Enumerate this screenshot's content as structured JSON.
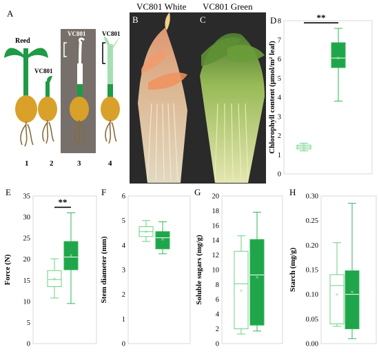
{
  "colors": {
    "green_fill": "#1fa64a",
    "green_line": "#2fb457",
    "light_line": "#6ccf82",
    "seed": "#d9a12a",
    "root": "#8a6a3a",
    "panel3_bg": "#77706a"
  },
  "panel_letters": [
    "A",
    "B",
    "C",
    "D",
    "E",
    "F",
    "G",
    "H"
  ],
  "panel_a": {
    "reed_label": "Reed",
    "vc801_label": "VC801",
    "numbers": [
      "1",
      "2",
      "3",
      "4"
    ]
  },
  "photos": {
    "b_title": "VC801 White",
    "c_title": "VC801 Green"
  },
  "chart_data": [
    {
      "id": "D",
      "type": "box",
      "ylabel": "Chlorophyll content (μmol/m² leaf)",
      "ylim": [
        0,
        8
      ],
      "yticks": [
        "0",
        "1",
        "2",
        "3",
        "4",
        "5",
        "6",
        "7",
        "8"
      ],
      "significance": "**",
      "series": [
        {
          "name": "",
          "style": "open",
          "min": 1.2,
          "q1": 1.3,
          "median": 1.4,
          "q3": 1.5,
          "max": 1.6,
          "mean": 1.4
        },
        {
          "name": "",
          "style": "filled",
          "min": 3.8,
          "q1": 5.55,
          "median": 6.05,
          "q3": 6.85,
          "max": 7.6,
          "mean": 6.05
        }
      ]
    },
    {
      "id": "E",
      "type": "box",
      "ylabel": "Force (N)",
      "ylim": [
        0,
        35
      ],
      "yticks": [
        "0",
        "5",
        "10",
        "15",
        "20",
        "25",
        "30",
        "35"
      ],
      "significance": "**",
      "series": [
        {
          "name": "",
          "style": "open",
          "min": 10.8,
          "q1": 13.5,
          "median": 15.2,
          "q3": 17.3,
          "max": 20.1,
          "mean": 15.4
        },
        {
          "name": "",
          "style": "filled",
          "min": 9.5,
          "q1": 17.5,
          "median": 20.5,
          "q3": 24.2,
          "max": 31.0,
          "mean": 20.9
        }
      ]
    },
    {
      "id": "F",
      "type": "box",
      "ylabel": "Stem diameter (mm)",
      "ylim": [
        0,
        6
      ],
      "yticks": [
        "0",
        "1",
        "2",
        "3",
        "4",
        "5",
        "6"
      ],
      "significance": "",
      "series": [
        {
          "name": "",
          "style": "open",
          "min": 4.15,
          "q1": 4.35,
          "median": 4.55,
          "q3": 4.75,
          "max": 5.0,
          "mean": 4.55
        },
        {
          "name": "",
          "style": "filled",
          "min": 3.65,
          "q1": 3.85,
          "median": 4.3,
          "q3": 4.55,
          "max": 4.95,
          "mean": 4.25
        }
      ]
    },
    {
      "id": "G",
      "type": "box",
      "ylabel": "Soluble sugars (mg/g)",
      "ylim": [
        0,
        20
      ],
      "yticks": [
        "0",
        "2",
        "4",
        "6",
        "8",
        "10",
        "12",
        "14",
        "16",
        "18",
        "20"
      ],
      "significance": "",
      "series": [
        {
          "name": "",
          "style": "open",
          "min": 1.3,
          "q1": 2.0,
          "median": 8.1,
          "q3": 12.5,
          "max": 14.6,
          "mean": 7.2
        },
        {
          "name": "",
          "style": "filled",
          "min": 1.7,
          "q1": 2.5,
          "median": 9.3,
          "q3": 14.1,
          "max": 17.8,
          "mean": 9.0
        }
      ]
    },
    {
      "id": "H",
      "type": "box",
      "ylabel": "Starch (mg/g)",
      "ylim": [
        0,
        0.3
      ],
      "yticks": [
        "0.00",
        "0.05",
        "0.10",
        "0.15",
        "0.20",
        "0.25",
        "0.30"
      ],
      "significance": "",
      "series": [
        {
          "name": "",
          "style": "open",
          "min": 0.035,
          "q1": 0.04,
          "median": 0.118,
          "q3": 0.14,
          "max": 0.205,
          "mean": 0.1
        },
        {
          "name": "",
          "style": "filled",
          "min": 0.01,
          "q1": 0.03,
          "median": 0.1,
          "q3": 0.148,
          "max": 0.285,
          "mean": 0.105
        }
      ]
    }
  ]
}
